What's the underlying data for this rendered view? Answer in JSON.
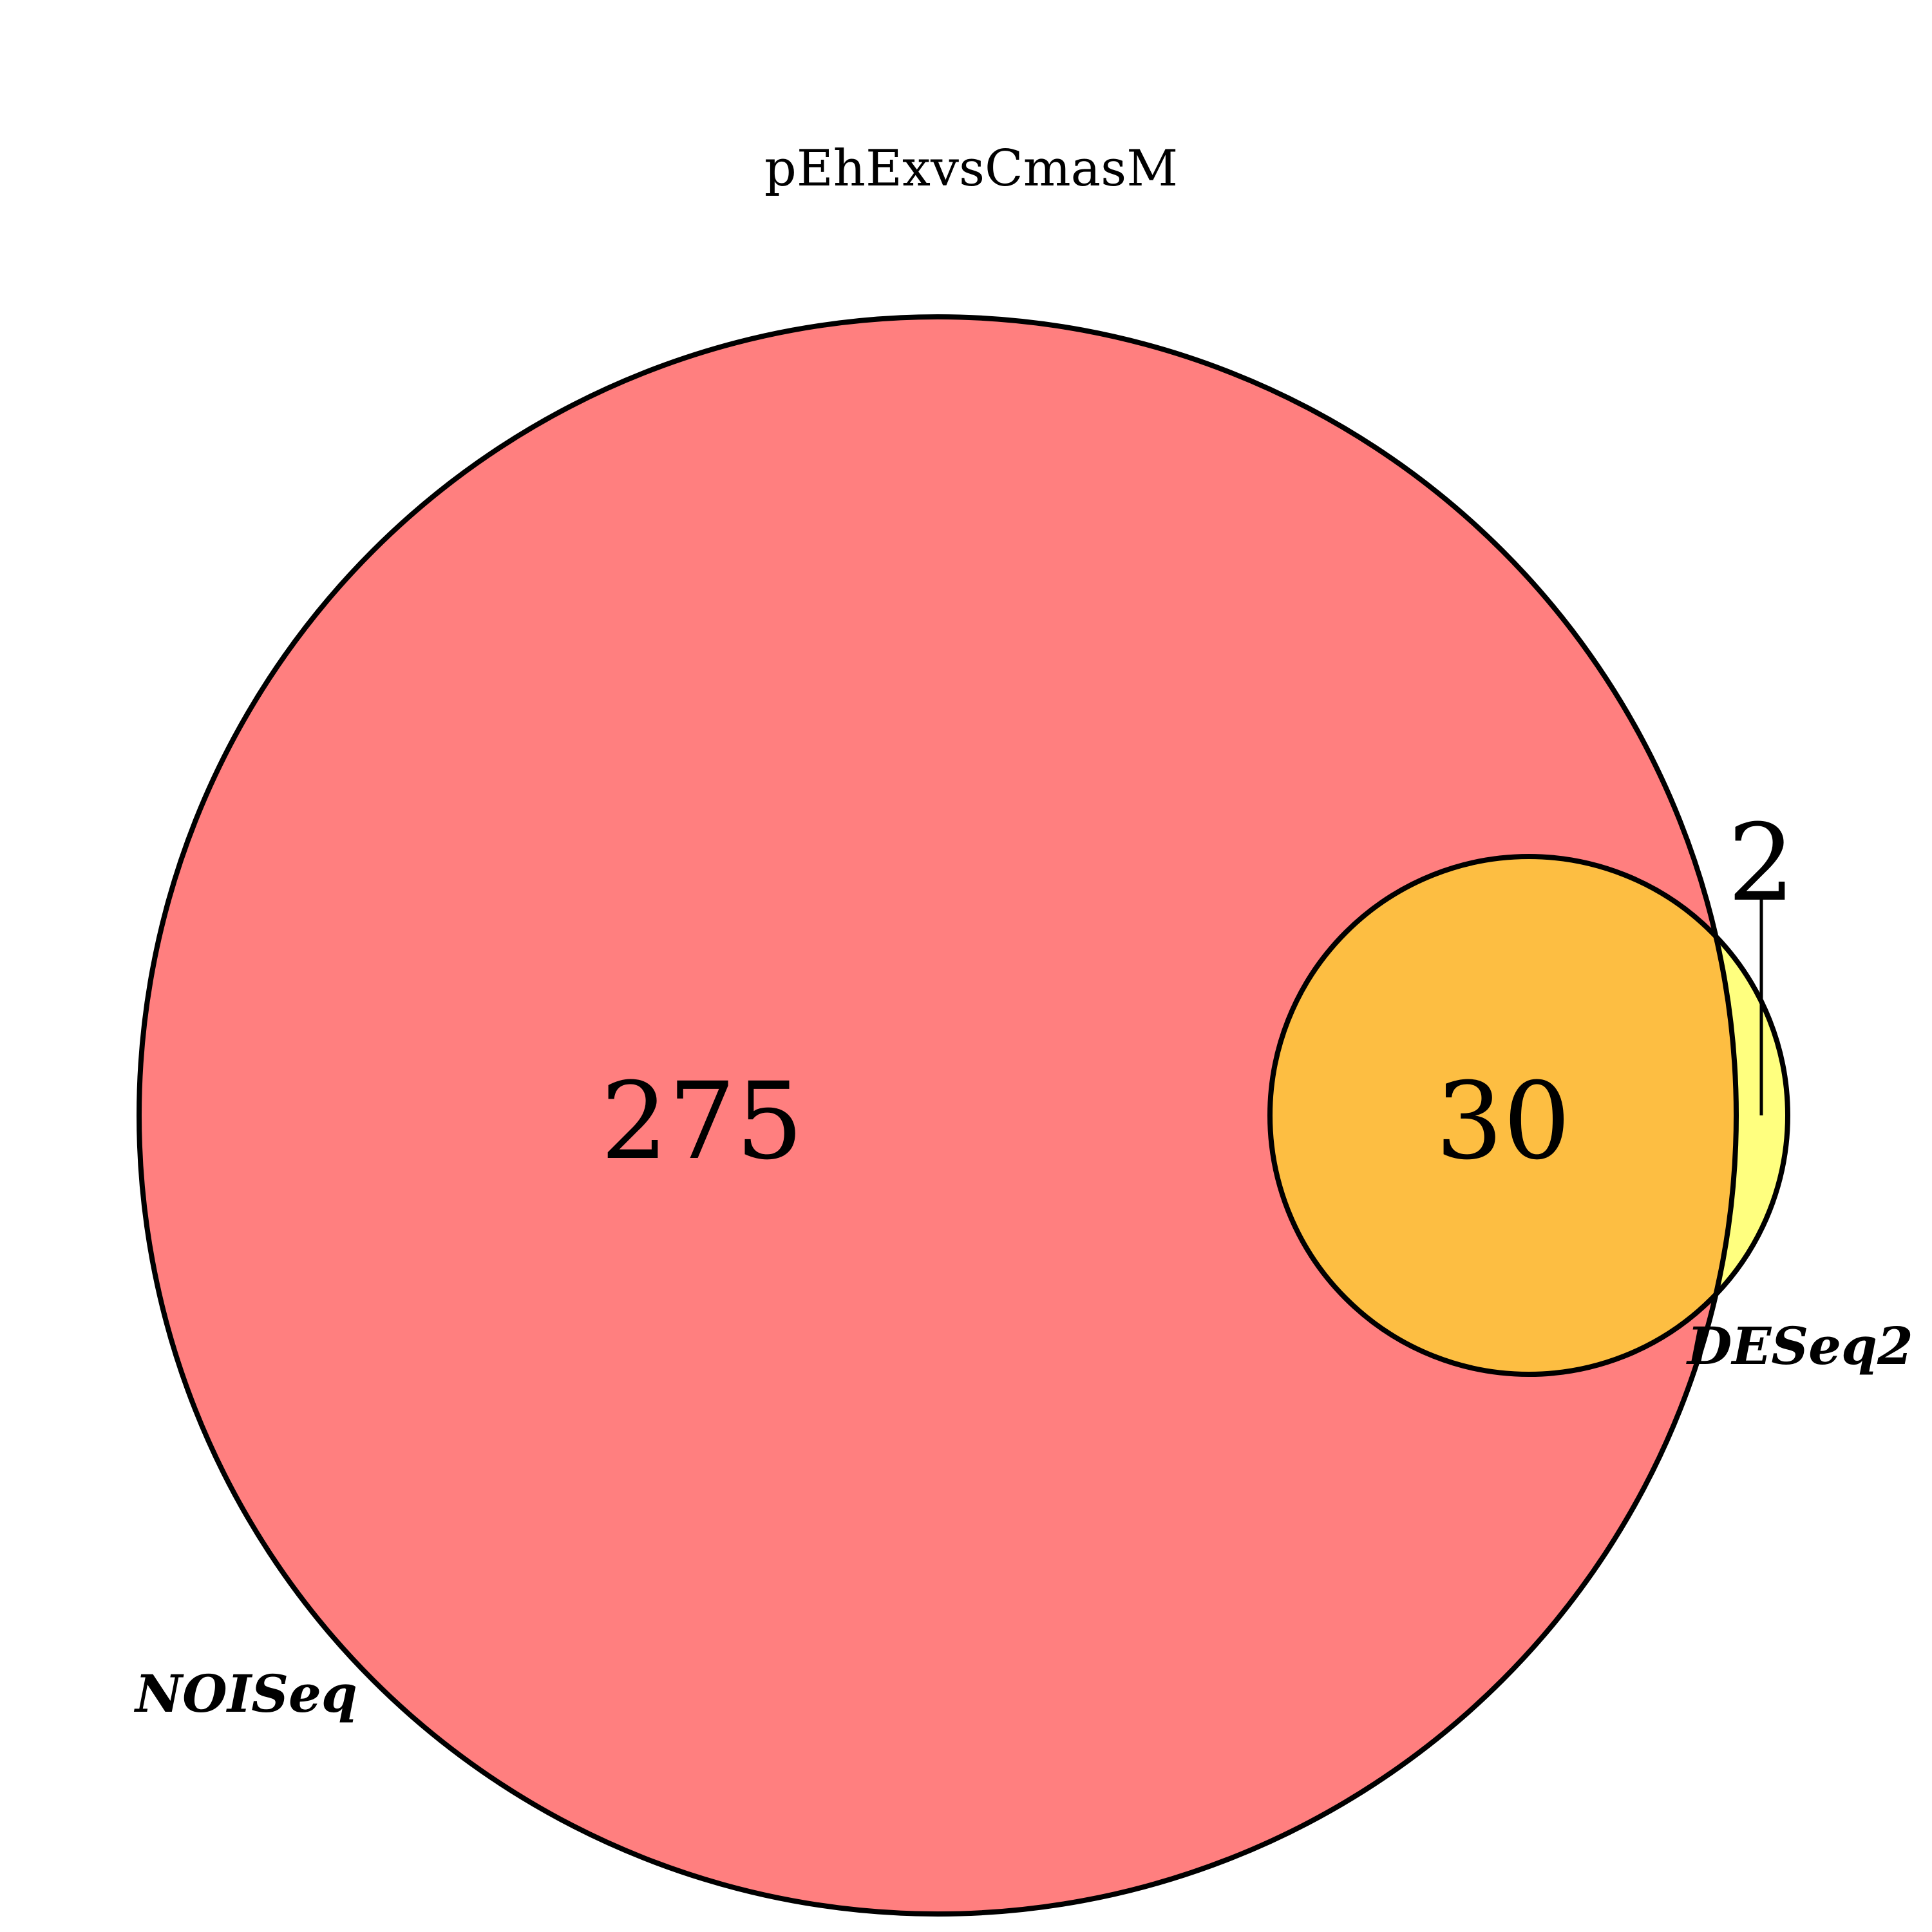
{
  "title": "pEhExvsCmasM",
  "sets": [
    {
      "name": "NOISeq",
      "fill": "#ff7f7f",
      "stroke": "#000000"
    },
    {
      "name": "DESeq2",
      "fill": "#ffff7f",
      "stroke": "#000000"
    }
  ],
  "overlap_fill": "#fdbe42",
  "regions": {
    "noiseq_only": "275",
    "both": "30",
    "deseq2_only": "2"
  }
}
